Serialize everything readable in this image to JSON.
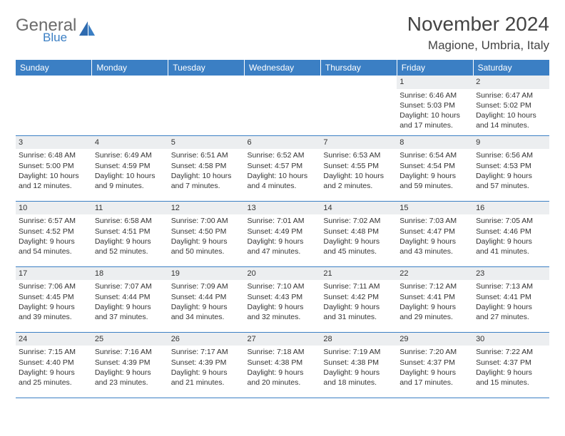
{
  "logo": {
    "general": "General",
    "blue": "Blue"
  },
  "title": "November 2024",
  "location": "Magione, Umbria, Italy",
  "colors": {
    "header_bg": "#3b7fc4",
    "header_text": "#ffffff",
    "daynum_bg": "#eceef0",
    "border": "#3b7fc4",
    "text": "#333333",
    "logo_gray": "#6b6b6b",
    "logo_blue": "#3b7fc4"
  },
  "weekdays": [
    "Sunday",
    "Monday",
    "Tuesday",
    "Wednesday",
    "Thursday",
    "Friday",
    "Saturday"
  ],
  "weeks": [
    [
      {
        "day": "",
        "empty": true
      },
      {
        "day": "",
        "empty": true
      },
      {
        "day": "",
        "empty": true
      },
      {
        "day": "",
        "empty": true
      },
      {
        "day": "",
        "empty": true
      },
      {
        "day": "1",
        "sunrise": "Sunrise: 6:46 AM",
        "sunset": "Sunset: 5:03 PM",
        "daylight": "Daylight: 10 hours and 17 minutes."
      },
      {
        "day": "2",
        "sunrise": "Sunrise: 6:47 AM",
        "sunset": "Sunset: 5:02 PM",
        "daylight": "Daylight: 10 hours and 14 minutes."
      }
    ],
    [
      {
        "day": "3",
        "sunrise": "Sunrise: 6:48 AM",
        "sunset": "Sunset: 5:00 PM",
        "daylight": "Daylight: 10 hours and 12 minutes."
      },
      {
        "day": "4",
        "sunrise": "Sunrise: 6:49 AM",
        "sunset": "Sunset: 4:59 PM",
        "daylight": "Daylight: 10 hours and 9 minutes."
      },
      {
        "day": "5",
        "sunrise": "Sunrise: 6:51 AM",
        "sunset": "Sunset: 4:58 PM",
        "daylight": "Daylight: 10 hours and 7 minutes."
      },
      {
        "day": "6",
        "sunrise": "Sunrise: 6:52 AM",
        "sunset": "Sunset: 4:57 PM",
        "daylight": "Daylight: 10 hours and 4 minutes."
      },
      {
        "day": "7",
        "sunrise": "Sunrise: 6:53 AM",
        "sunset": "Sunset: 4:55 PM",
        "daylight": "Daylight: 10 hours and 2 minutes."
      },
      {
        "day": "8",
        "sunrise": "Sunrise: 6:54 AM",
        "sunset": "Sunset: 4:54 PM",
        "daylight": "Daylight: 9 hours and 59 minutes."
      },
      {
        "day": "9",
        "sunrise": "Sunrise: 6:56 AM",
        "sunset": "Sunset: 4:53 PM",
        "daylight": "Daylight: 9 hours and 57 minutes."
      }
    ],
    [
      {
        "day": "10",
        "sunrise": "Sunrise: 6:57 AM",
        "sunset": "Sunset: 4:52 PM",
        "daylight": "Daylight: 9 hours and 54 minutes."
      },
      {
        "day": "11",
        "sunrise": "Sunrise: 6:58 AM",
        "sunset": "Sunset: 4:51 PM",
        "daylight": "Daylight: 9 hours and 52 minutes."
      },
      {
        "day": "12",
        "sunrise": "Sunrise: 7:00 AM",
        "sunset": "Sunset: 4:50 PM",
        "daylight": "Daylight: 9 hours and 50 minutes."
      },
      {
        "day": "13",
        "sunrise": "Sunrise: 7:01 AM",
        "sunset": "Sunset: 4:49 PM",
        "daylight": "Daylight: 9 hours and 47 minutes."
      },
      {
        "day": "14",
        "sunrise": "Sunrise: 7:02 AM",
        "sunset": "Sunset: 4:48 PM",
        "daylight": "Daylight: 9 hours and 45 minutes."
      },
      {
        "day": "15",
        "sunrise": "Sunrise: 7:03 AM",
        "sunset": "Sunset: 4:47 PM",
        "daylight": "Daylight: 9 hours and 43 minutes."
      },
      {
        "day": "16",
        "sunrise": "Sunrise: 7:05 AM",
        "sunset": "Sunset: 4:46 PM",
        "daylight": "Daylight: 9 hours and 41 minutes."
      }
    ],
    [
      {
        "day": "17",
        "sunrise": "Sunrise: 7:06 AM",
        "sunset": "Sunset: 4:45 PM",
        "daylight": "Daylight: 9 hours and 39 minutes."
      },
      {
        "day": "18",
        "sunrise": "Sunrise: 7:07 AM",
        "sunset": "Sunset: 4:44 PM",
        "daylight": "Daylight: 9 hours and 37 minutes."
      },
      {
        "day": "19",
        "sunrise": "Sunrise: 7:09 AM",
        "sunset": "Sunset: 4:44 PM",
        "daylight": "Daylight: 9 hours and 34 minutes."
      },
      {
        "day": "20",
        "sunrise": "Sunrise: 7:10 AM",
        "sunset": "Sunset: 4:43 PM",
        "daylight": "Daylight: 9 hours and 32 minutes."
      },
      {
        "day": "21",
        "sunrise": "Sunrise: 7:11 AM",
        "sunset": "Sunset: 4:42 PM",
        "daylight": "Daylight: 9 hours and 31 minutes."
      },
      {
        "day": "22",
        "sunrise": "Sunrise: 7:12 AM",
        "sunset": "Sunset: 4:41 PM",
        "daylight": "Daylight: 9 hours and 29 minutes."
      },
      {
        "day": "23",
        "sunrise": "Sunrise: 7:13 AM",
        "sunset": "Sunset: 4:41 PM",
        "daylight": "Daylight: 9 hours and 27 minutes."
      }
    ],
    [
      {
        "day": "24",
        "sunrise": "Sunrise: 7:15 AM",
        "sunset": "Sunset: 4:40 PM",
        "daylight": "Daylight: 9 hours and 25 minutes."
      },
      {
        "day": "25",
        "sunrise": "Sunrise: 7:16 AM",
        "sunset": "Sunset: 4:39 PM",
        "daylight": "Daylight: 9 hours and 23 minutes."
      },
      {
        "day": "26",
        "sunrise": "Sunrise: 7:17 AM",
        "sunset": "Sunset: 4:39 PM",
        "daylight": "Daylight: 9 hours and 21 minutes."
      },
      {
        "day": "27",
        "sunrise": "Sunrise: 7:18 AM",
        "sunset": "Sunset: 4:38 PM",
        "daylight": "Daylight: 9 hours and 20 minutes."
      },
      {
        "day": "28",
        "sunrise": "Sunrise: 7:19 AM",
        "sunset": "Sunset: 4:38 PM",
        "daylight": "Daylight: 9 hours and 18 minutes."
      },
      {
        "day": "29",
        "sunrise": "Sunrise: 7:20 AM",
        "sunset": "Sunset: 4:37 PM",
        "daylight": "Daylight: 9 hours and 17 minutes."
      },
      {
        "day": "30",
        "sunrise": "Sunrise: 7:22 AM",
        "sunset": "Sunset: 4:37 PM",
        "daylight": "Daylight: 9 hours and 15 minutes."
      }
    ]
  ]
}
